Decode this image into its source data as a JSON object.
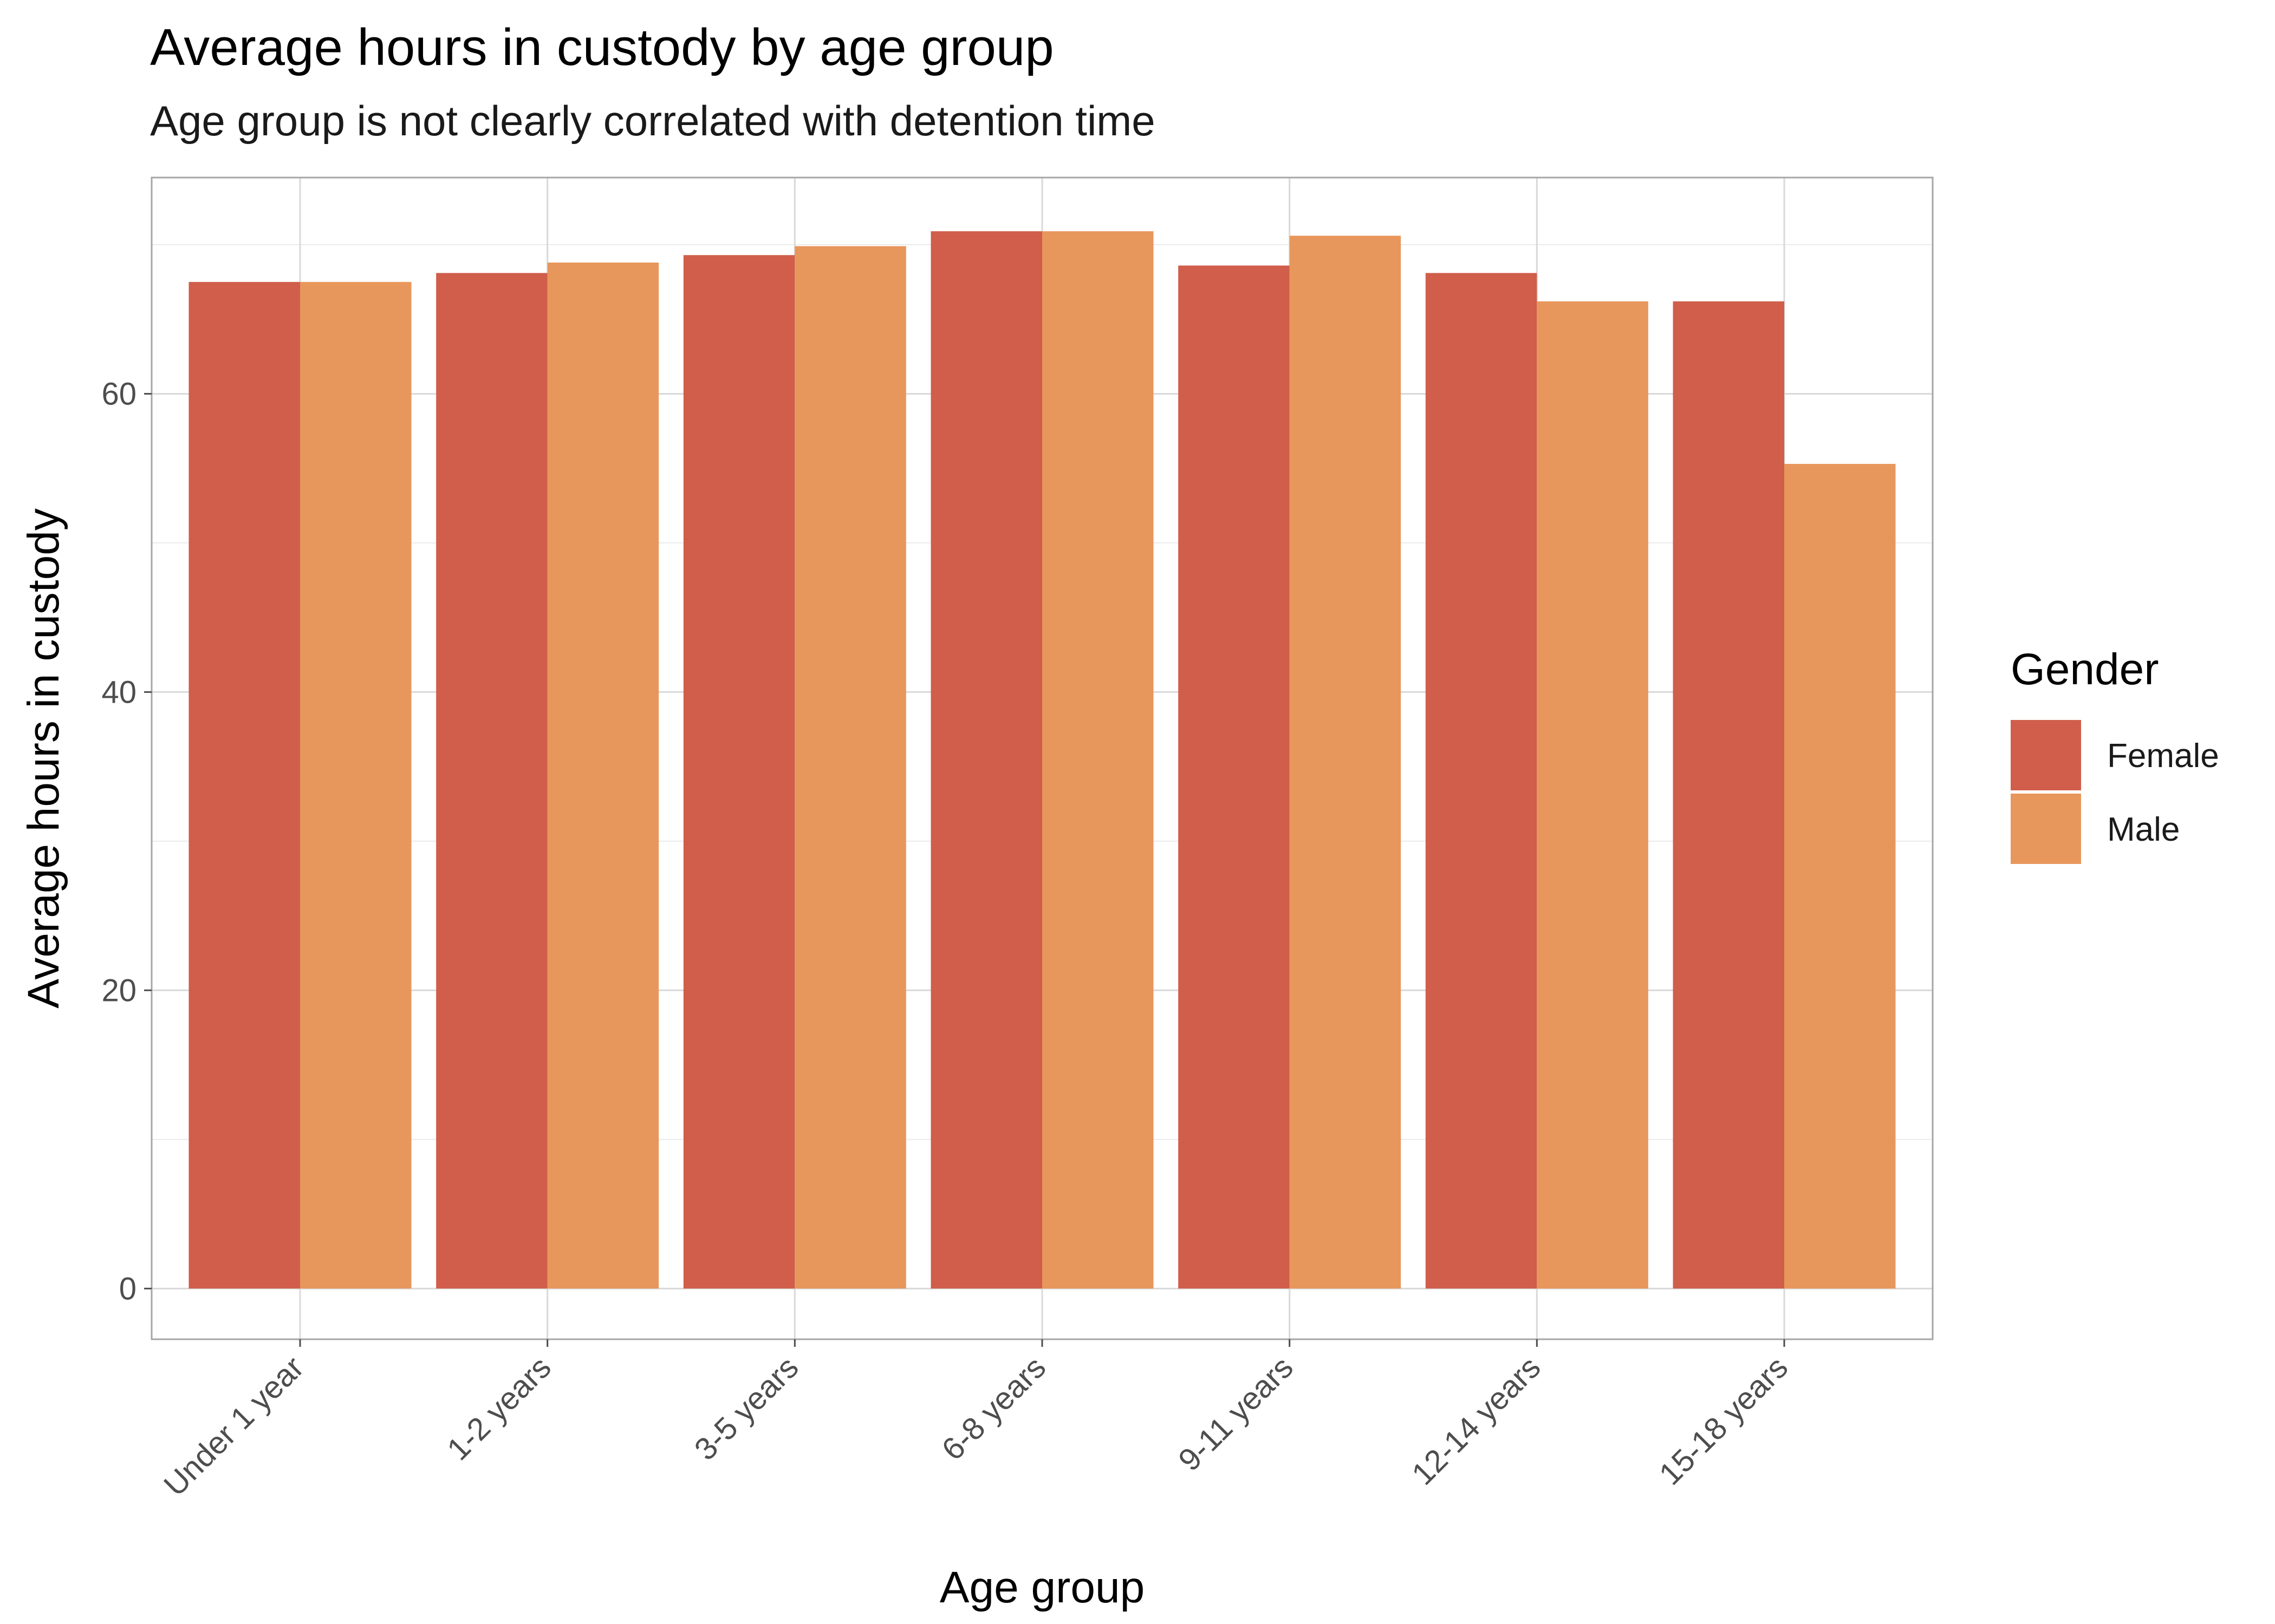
{
  "chart_data": {
    "type": "bar",
    "title": "Average hours in custody by age group",
    "subtitle": "Age group is not clearly correlated with detention time",
    "xlabel": "Age group",
    "ylabel": "Average hours in custody",
    "categories": [
      "Under 1 year",
      "1-2 years",
      "3-5 years",
      "6-8 years",
      "9-11 years",
      "12-14 years",
      "15-18 years"
    ],
    "series": [
      {
        "name": "Female",
        "color": "#D05E4B",
        "values": [
          67.5,
          68.1,
          69.3,
          70.9,
          68.6,
          68.1,
          66.2
        ]
      },
      {
        "name": "Male",
        "color": "#E8975C",
        "values": [
          67.5,
          68.8,
          69.9,
          70.9,
          70.6,
          66.2,
          55.3
        ]
      }
    ],
    "ylim": [
      -3.4,
      74.5
    ],
    "yticks": [
      0,
      20,
      40,
      60
    ],
    "y_minor_ticks": [
      10,
      30,
      50,
      70
    ],
    "grid": true,
    "legend": {
      "title": "Gender",
      "placement": "right"
    }
  }
}
